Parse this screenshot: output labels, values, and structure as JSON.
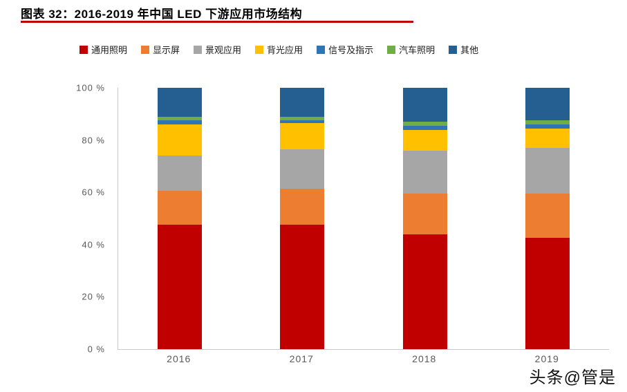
{
  "header": {
    "title": "图表 32：2016-2019 年中国 LED 下游应用市场结构"
  },
  "watermark": "头条@管是",
  "chart_data": {
    "type": "bar",
    "stacked": true,
    "title": "2016-2019 年中国 LED 下游应用市场结构",
    "categories": [
      "2016",
      "2017",
      "2018",
      "2019"
    ],
    "series": [
      {
        "name": "通用照明",
        "color": "#c00000",
        "values": [
          47.5,
          47.5,
          44.0,
          42.5
        ]
      },
      {
        "name": "显示屏",
        "color": "#ed7d31",
        "values": [
          13.0,
          14.0,
          15.5,
          17.0
        ]
      },
      {
        "name": "景观应用",
        "color": "#a6a6a6",
        "values": [
          13.5,
          15.0,
          16.5,
          17.5
        ]
      },
      {
        "name": "背光应用",
        "color": "#ffc000",
        "values": [
          12.0,
          10.0,
          8.0,
          7.5
        ]
      },
      {
        "name": "信号及指示",
        "color": "#2e75b6",
        "values": [
          1.5,
          1.0,
          1.5,
          1.5
        ]
      },
      {
        "name": "汽车照明",
        "color": "#70ad47",
        "values": [
          1.5,
          1.5,
          1.5,
          1.5
        ]
      },
      {
        "name": "其他",
        "color": "#255e91",
        "values": [
          11.0,
          11.0,
          13.0,
          12.5
        ]
      }
    ],
    "xlabel": "",
    "ylabel": "",
    "ylim": [
      0,
      100
    ],
    "yticks": [
      "0 %",
      "20 %",
      "40 %",
      "60 %",
      "80 %",
      "100 %"
    ],
    "legend_position": "top",
    "grid": false,
    "unit": "percent"
  }
}
